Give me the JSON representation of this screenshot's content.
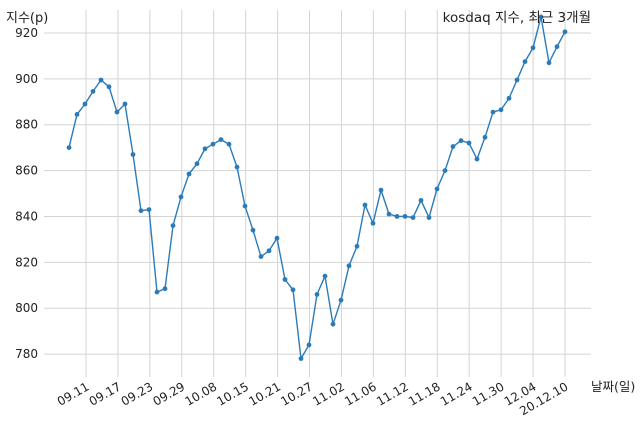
{
  "chart_data": {
    "type": "line",
    "title": "kosdaq 지수, 최근 3개월",
    "ylabel": "지수(p)",
    "xlabel": "날짜(일)",
    "ylim": [
      770,
      930
    ],
    "yticks": [
      780,
      800,
      820,
      840,
      860,
      880,
      900,
      920
    ],
    "xtick_labels": [
      "09.11",
      "09.17",
      "09.23",
      "09.29",
      "10.08",
      "10.15",
      "10.21",
      "10.27",
      "11.02",
      "11.06",
      "11.12",
      "11.18",
      "11.24",
      "11.30",
      "12.04",
      "20.12.10"
    ],
    "grid": true,
    "color": "#2b7bb9",
    "values": [
      870,
      884.5,
      889,
      894.5,
      899.5,
      896.5,
      885.5,
      889,
      867,
      842.5,
      843,
      807,
      808.5,
      836,
      848.5,
      858.5,
      863,
      869.5,
      871.5,
      873.5,
      871.5,
      861.5,
      844.5,
      834,
      822.5,
      825,
      830.5,
      812.5,
      808,
      778,
      784,
      806,
      814,
      793,
      803.5,
      818.5,
      827,
      845,
      837,
      851.5,
      841,
      840,
      840,
      839.5,
      847,
      839.5,
      852,
      860,
      870.5,
      873,
      872,
      865,
      874.5,
      885.5,
      886.5,
      891.5,
      899.5,
      907.5,
      913.5,
      927,
      907,
      914,
      920.5
    ]
  }
}
